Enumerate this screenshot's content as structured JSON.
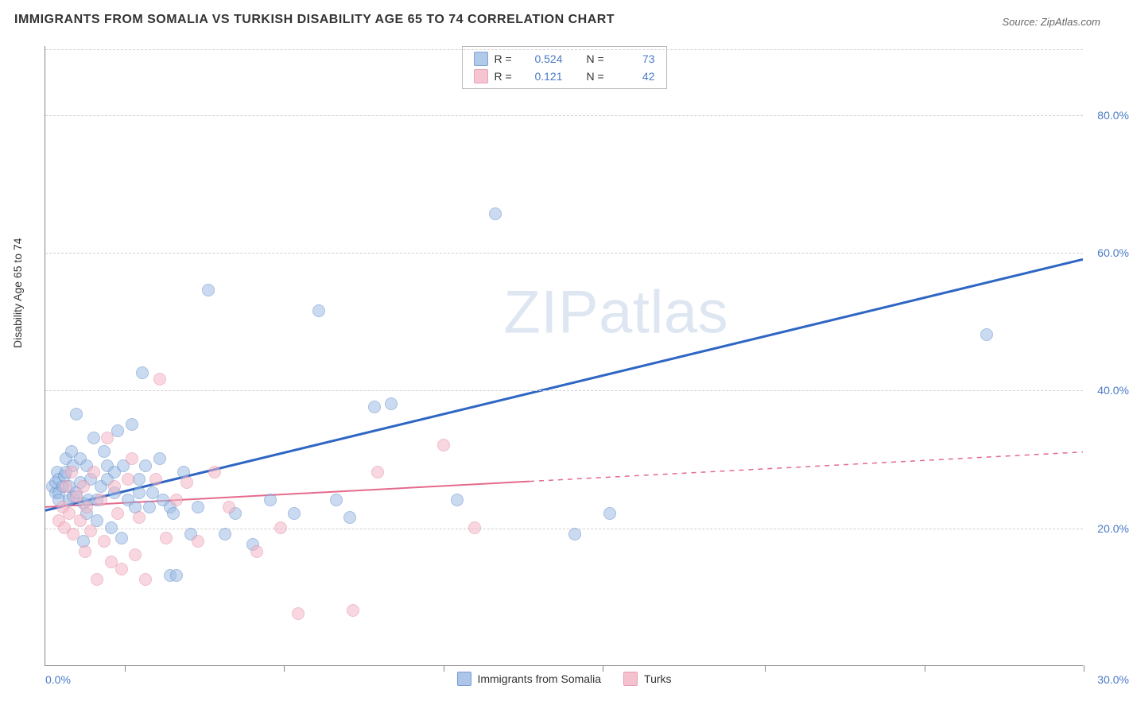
{
  "title": "IMMIGRANTS FROM SOMALIA VS TURKISH DISABILITY AGE 65 TO 74 CORRELATION CHART",
  "source_prefix": "Source: ",
  "source_name": "ZipAtlas.com",
  "watermark": {
    "zip": "ZIP",
    "rest": "atlas"
  },
  "yaxis_label": "Disability Age 65 to 74",
  "chart": {
    "type": "scatter",
    "background_color": "#ffffff",
    "grid_color": "#d0d0d0",
    "xlim": [
      0,
      30
    ],
    "ylim": [
      0,
      90
    ],
    "xtick_labels": {
      "left": "0.0%",
      "right": "30.0%"
    },
    "xtick_positions": [
      2.3,
      6.9,
      11.5,
      16.1,
      20.8,
      25.4,
      30.0
    ],
    "yticks": [
      20,
      40,
      60,
      80
    ],
    "ytick_labels": [
      "20.0%",
      "40.0%",
      "60.0%",
      "80.0%"
    ],
    "marker_radius": 8,
    "marker_stroke_width": 1.5,
    "series": [
      {
        "name": "Immigrants from Somalia",
        "fill_color": "#9fbde5",
        "stroke_color": "#5e8bc9",
        "fill_opacity": 0.55,
        "R": "0.524",
        "N": "73",
        "trend": {
          "x1": 0.0,
          "y1": 22.5,
          "x2": 30.0,
          "y2": 59.0,
          "solid_end_x": 30.0,
          "color": "#2f66c4",
          "width": 3
        },
        "points": [
          [
            0.2,
            26
          ],
          [
            0.3,
            25
          ],
          [
            0.3,
            26.5
          ],
          [
            0.35,
            28
          ],
          [
            0.4,
            25
          ],
          [
            0.4,
            27
          ],
          [
            0.4,
            24
          ],
          [
            0.5,
            26
          ],
          [
            0.55,
            27.5
          ],
          [
            0.6,
            30
          ],
          [
            0.6,
            28
          ],
          [
            0.7,
            26
          ],
          [
            0.7,
            24
          ],
          [
            0.75,
            31
          ],
          [
            0.8,
            24.5
          ],
          [
            0.8,
            29
          ],
          [
            0.9,
            25
          ],
          [
            0.9,
            36.5
          ],
          [
            1.0,
            26.5
          ],
          [
            1.0,
            30
          ],
          [
            1.1,
            23.5
          ],
          [
            1.1,
            18
          ],
          [
            1.2,
            29
          ],
          [
            1.2,
            22
          ],
          [
            1.25,
            24
          ],
          [
            1.3,
            27
          ],
          [
            1.4,
            33
          ],
          [
            1.5,
            21
          ],
          [
            1.5,
            24
          ],
          [
            1.6,
            26
          ],
          [
            1.7,
            31
          ],
          [
            1.8,
            29
          ],
          [
            1.8,
            27
          ],
          [
            1.9,
            20
          ],
          [
            2.0,
            25
          ],
          [
            2.0,
            28
          ],
          [
            2.1,
            34
          ],
          [
            2.2,
            18.5
          ],
          [
            2.25,
            29
          ],
          [
            2.4,
            24
          ],
          [
            2.5,
            35
          ],
          [
            2.6,
            23
          ],
          [
            2.7,
            27
          ],
          [
            2.7,
            25
          ],
          [
            2.8,
            42.5
          ],
          [
            2.9,
            29
          ],
          [
            3.0,
            23
          ],
          [
            3.1,
            25
          ],
          [
            3.3,
            30
          ],
          [
            3.4,
            24
          ],
          [
            3.6,
            13
          ],
          [
            3.6,
            23
          ],
          [
            3.7,
            22
          ],
          [
            3.8,
            13
          ],
          [
            4.0,
            28
          ],
          [
            4.2,
            19
          ],
          [
            4.4,
            23
          ],
          [
            4.7,
            54.5
          ],
          [
            5.2,
            19
          ],
          [
            5.5,
            22
          ],
          [
            6.0,
            17.5
          ],
          [
            6.5,
            24
          ],
          [
            7.2,
            22
          ],
          [
            7.9,
            51.5
          ],
          [
            8.8,
            21.5
          ],
          [
            9.5,
            37.5
          ],
          [
            10.0,
            38
          ],
          [
            11.9,
            24
          ],
          [
            13.0,
            65.5
          ],
          [
            15.3,
            19
          ],
          [
            16.3,
            22
          ],
          [
            27.2,
            48
          ],
          [
            8.4,
            24
          ]
        ]
      },
      {
        "name": "Turks",
        "fill_color": "#f3b7c7",
        "stroke_color": "#e38aa3",
        "fill_opacity": 0.55,
        "R": "0.121",
        "N": "42",
        "trend": {
          "x1": 0.0,
          "y1": 23.0,
          "x2": 30.0,
          "y2": 31.0,
          "solid_end_x": 14.0,
          "color": "#e46a8c",
          "width": 2
        },
        "points": [
          [
            0.4,
            21
          ],
          [
            0.5,
            23
          ],
          [
            0.55,
            20
          ],
          [
            0.6,
            26
          ],
          [
            0.7,
            22
          ],
          [
            0.75,
            28
          ],
          [
            0.8,
            19
          ],
          [
            0.9,
            24.5
          ],
          [
            1.0,
            21
          ],
          [
            1.1,
            26
          ],
          [
            1.15,
            16.5
          ],
          [
            1.2,
            23
          ],
          [
            1.3,
            19.5
          ],
          [
            1.4,
            28
          ],
          [
            1.5,
            12.5
          ],
          [
            1.6,
            24
          ],
          [
            1.7,
            18
          ],
          [
            1.8,
            33
          ],
          [
            1.9,
            15
          ],
          [
            2.0,
            26
          ],
          [
            2.1,
            22
          ],
          [
            2.2,
            14
          ],
          [
            2.4,
            27
          ],
          [
            2.5,
            30
          ],
          [
            2.6,
            16
          ],
          [
            2.7,
            21.5
          ],
          [
            2.9,
            12.5
          ],
          [
            3.2,
            27
          ],
          [
            3.3,
            41.5
          ],
          [
            3.5,
            18.5
          ],
          [
            3.8,
            24
          ],
          [
            4.1,
            26.5
          ],
          [
            4.4,
            18
          ],
          [
            4.9,
            28
          ],
          [
            5.3,
            23
          ],
          [
            6.1,
            16.5
          ],
          [
            6.8,
            20
          ],
          [
            7.3,
            7.5
          ],
          [
            8.9,
            8
          ],
          [
            9.6,
            28
          ],
          [
            11.5,
            32
          ],
          [
            12.4,
            20
          ]
        ]
      }
    ]
  },
  "legend_top": {
    "R_label": "R =",
    "N_label": "N ="
  },
  "legend_bottom": {
    "items": [
      "Immigrants from Somalia",
      "Turks"
    ]
  }
}
